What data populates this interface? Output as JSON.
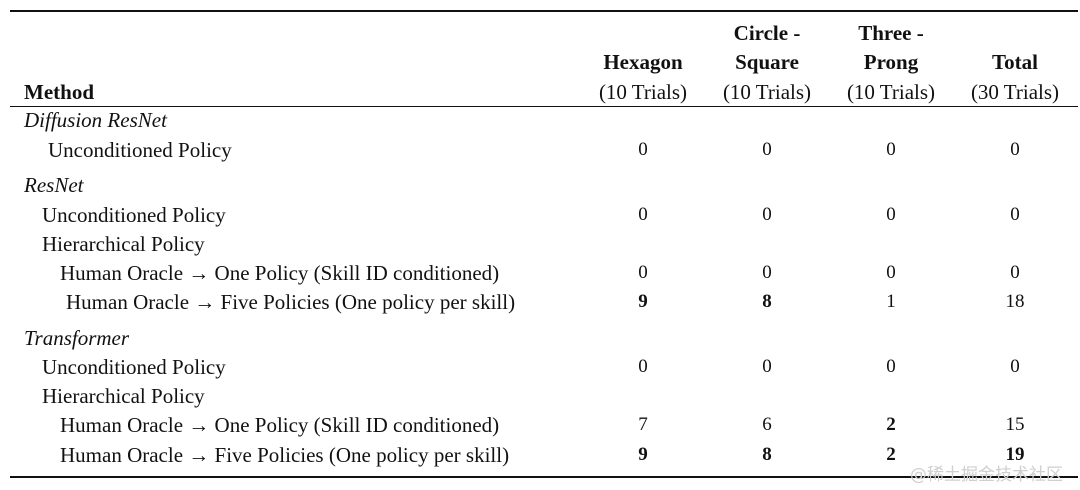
{
  "header": {
    "method": "Method",
    "col1": {
      "line1": "",
      "line2": "Hexagon",
      "line3": "(10 Trials)"
    },
    "col2": {
      "line1": "Circle -",
      "line2": "Square",
      "line3": "(10 Trials)"
    },
    "col3": {
      "line1": "Three -",
      "line2": "Prong",
      "line3": "(10 Trials)"
    },
    "col4": {
      "line1": "",
      "line2": "Total",
      "line3": "(30 Trials)"
    }
  },
  "groups": {
    "diffusion": "Diffusion ResNet",
    "resnet": "ResNet",
    "transformer": "Transformer"
  },
  "rows": [
    {
      "label": "Unconditioned Policy",
      "values": [
        "0",
        "0",
        "0",
        "0"
      ]
    },
    {
      "label": "Unconditioned Policy",
      "values": [
        "0",
        "0",
        "0",
        "0"
      ]
    },
    {
      "label": "Hierarchical Policy",
      "values": []
    },
    {
      "label": "Human Oracle → One Policy (Skill ID conditioned)",
      "values": [
        "0",
        "0",
        "0",
        "0"
      ]
    },
    {
      "label": "Human Oracle → Five Policies (One policy per skill)",
      "values": [
        "9",
        "8",
        "1",
        "18"
      ]
    },
    {
      "label": "Unconditioned Policy",
      "values": [
        "0",
        "0",
        "0",
        "0"
      ]
    },
    {
      "label": "Hierarchical Policy",
      "values": []
    },
    {
      "label": "Human Oracle → One Policy (Skill ID conditioned)",
      "values": [
        "7",
        "6",
        "2",
        "15"
      ]
    },
    {
      "label": "Human Oracle → Five Policies (One policy per skill)",
      "values": [
        "9",
        "8",
        "2",
        "19"
      ]
    }
  ],
  "watermark": "@稀土掘金技术社区"
}
